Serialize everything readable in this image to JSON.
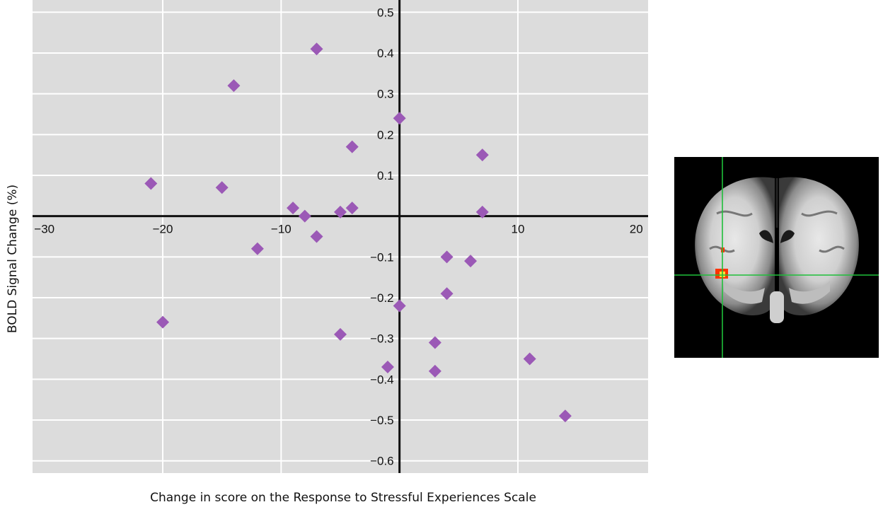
{
  "chart_data": {
    "type": "scatter",
    "title": "",
    "xlabel": "Change in score on the Response to Stressful Experiences Scale",
    "ylabel": "BOLD Signal Change (%)",
    "xlim": [
      -31,
      21
    ],
    "ylim": [
      -0.63,
      0.53
    ],
    "x_ticks": [
      -30,
      -20,
      -10,
      10,
      20
    ],
    "y_ticks": [
      0.5,
      0.4,
      0.3,
      0.2,
      0.1,
      -0.1,
      -0.2,
      -0.3,
      -0.4,
      -0.5,
      -0.6
    ],
    "x_tick_labels": [
      "−30",
      "−20",
      "−10",
      "10",
      "20"
    ],
    "y_tick_labels": [
      "0.5",
      "0.4",
      "0.3",
      "0.2",
      "0.1",
      "−0.1",
      "−0.2",
      "−0.3",
      "−0.4",
      "−0.5",
      "−0.6"
    ],
    "grid": true,
    "marker": "diamond",
    "colors": {
      "marker": "#9b59b6",
      "plot_bg": "#dcdcdc",
      "grid": "#ffffff",
      "axis": "#111111"
    },
    "points": [
      {
        "x": -21,
        "y": 0.08
      },
      {
        "x": -20,
        "y": -0.26
      },
      {
        "x": -15,
        "y": 0.07
      },
      {
        "x": -14,
        "y": 0.32
      },
      {
        "x": -12,
        "y": -0.08
      },
      {
        "x": -9,
        "y": 0.02
      },
      {
        "x": -8,
        "y": 0.0
      },
      {
        "x": -7,
        "y": 0.41
      },
      {
        "x": -7,
        "y": -0.05
      },
      {
        "x": -5,
        "y": 0.01
      },
      {
        "x": -5,
        "y": -0.29
      },
      {
        "x": -4,
        "y": 0.17
      },
      {
        "x": -4,
        "y": 0.02
      },
      {
        "x": -1,
        "y": -0.37
      },
      {
        "x": 0,
        "y": 0.24
      },
      {
        "x": 0,
        "y": -0.22
      },
      {
        "x": 3,
        "y": -0.31
      },
      {
        "x": 3,
        "y": -0.38
      },
      {
        "x": 4,
        "y": -0.1
      },
      {
        "x": 4,
        "y": -0.19
      },
      {
        "x": 6,
        "y": -0.11
      },
      {
        "x": 7,
        "y": 0.15
      },
      {
        "x": 7,
        "y": 0.01
      },
      {
        "x": 11,
        "y": -0.35
      },
      {
        "x": 14,
        "y": -0.49
      }
    ]
  },
  "brain_image": {
    "description_icon": "brain-mri-coronal-slice-icon",
    "crosshair_color": "#1fbf3a",
    "activation_colors": [
      "#ff3300",
      "#ffdd33"
    ]
  }
}
